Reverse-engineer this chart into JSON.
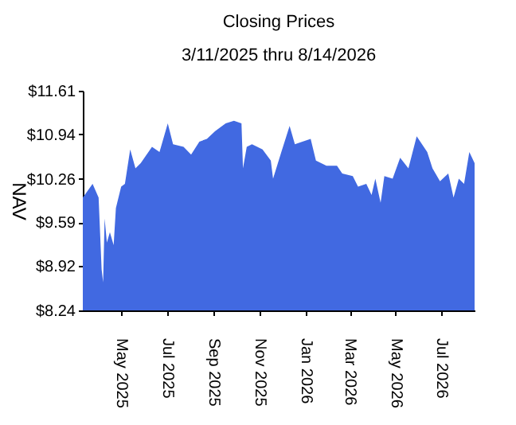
{
  "chart_data": {
    "type": "area",
    "title": "Closing Prices",
    "subtitle": "3/11/2025 thru 8/14/2026",
    "ylabel": "NAV",
    "x": [
      "2025-03-11",
      "2025-03-24",
      "2025-04-01",
      "2025-04-05",
      "2025-04-07",
      "2025-04-09",
      "2025-04-12",
      "2025-04-16",
      "2025-04-21",
      "2025-04-24",
      "2025-05-01",
      "2025-05-06",
      "2025-05-13",
      "2025-05-20",
      "2025-05-27",
      "2025-06-11",
      "2025-06-21",
      "2025-07-02",
      "2025-07-09",
      "2025-07-23",
      "2025-08-02",
      "2025-08-13",
      "2025-08-23",
      "2025-09-03",
      "2025-09-17",
      "2025-09-28",
      "2025-10-08",
      "2025-10-10",
      "2025-10-15",
      "2025-10-22",
      "2025-11-05",
      "2025-11-16",
      "2025-11-19",
      "2025-11-30",
      "2025-12-11",
      "2025-12-18",
      "2025-12-28",
      "2026-01-08",
      "2026-01-15",
      "2026-01-29",
      "2026-02-12",
      "2026-02-19",
      "2026-03-05",
      "2026-03-12",
      "2026-03-23",
      "2026-03-30",
      "2026-04-04",
      "2026-04-11",
      "2026-04-16",
      "2026-04-27",
      "2026-05-07",
      "2026-05-18",
      "2026-05-29",
      "2026-06-12",
      "2026-06-19",
      "2026-06-29",
      "2026-07-10",
      "2026-07-17",
      "2026-07-24",
      "2026-07-31",
      "2026-08-07",
      "2026-08-14"
    ],
    "series": [
      {
        "color": "#4169e1",
        "values": [
          9.97,
          10.18,
          9.97,
          8.87,
          8.67,
          9.65,
          9.28,
          9.44,
          9.24,
          9.81,
          10.14,
          10.18,
          10.71,
          10.42,
          10.5,
          10.75,
          10.67,
          11.11,
          10.79,
          10.75,
          10.63,
          10.83,
          10.87,
          10.99,
          11.11,
          11.15,
          11.11,
          10.42,
          10.75,
          10.79,
          10.71,
          10.54,
          10.26,
          10.67,
          11.07,
          10.79,
          10.83,
          10.87,
          10.54,
          10.46,
          10.46,
          10.34,
          10.3,
          10.14,
          10.18,
          10.01,
          10.26,
          9.89,
          10.3,
          10.26,
          10.58,
          10.42,
          10.91,
          10.67,
          10.42,
          10.22,
          10.34,
          9.97,
          10.26,
          10.18,
          10.67,
          10.5
        ]
      }
    ],
    "xlim": [
      "2025-03-11",
      "2026-08-14"
    ],
    "xticks": [
      {
        "value": "2025-05-01",
        "label": "May 2025"
      },
      {
        "value": "2025-07-01",
        "label": "Jul 2025"
      },
      {
        "value": "2025-09-01",
        "label": "Sep 2025"
      },
      {
        "value": "2025-11-01",
        "label": "Nov 2025"
      },
      {
        "value": "2026-01-01",
        "label": "Jan 2026"
      },
      {
        "value": "2026-03-01",
        "label": "Mar 2026"
      },
      {
        "value": "2026-05-01",
        "label": "May 2026"
      },
      {
        "value": "2026-07-01",
        "label": "Jul 2026"
      }
    ],
    "ylim": [
      8.24,
      11.61
    ],
    "yticks": [
      {
        "value": 8.24,
        "label": "$8.24"
      },
      {
        "value": 8.92,
        "label": "$8.92"
      },
      {
        "value": 9.59,
        "label": "$9.59"
      },
      {
        "value": 10.26,
        "label": "$10.26"
      },
      {
        "value": 10.94,
        "label": "$10.94"
      },
      {
        "value": 11.61,
        "label": "$11.61"
      }
    ],
    "grid": false
  }
}
